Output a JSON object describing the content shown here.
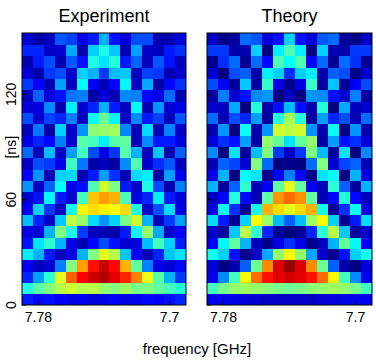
{
  "chart_data": [
    {
      "type": "heatmap",
      "title": "Experiment",
      "xlabel": "frequency [GHz]",
      "ylabel": "[ns]",
      "xlim": [
        7.79,
        7.69
      ],
      "ylim": [
        0,
        155
      ],
      "xticks": [
        7.78,
        7.7
      ],
      "yticks": [
        0,
        60,
        120
      ],
      "x": [
        7.7867,
        7.78,
        7.7733,
        7.7667,
        7.76,
        7.7533,
        7.7467,
        7.74,
        7.7333,
        7.7267,
        7.72,
        7.7133,
        7.7067,
        7.7,
        7.6933
      ],
      "y": [
        3.23,
        9.69,
        16.15,
        22.6,
        29.06,
        35.52,
        41.98,
        48.44,
        54.9,
        61.35,
        67.81,
        74.27,
        80.73,
        87.19,
        93.65,
        100.1,
        106.56,
        113.02,
        119.48,
        125.94,
        132.4,
        138.85,
        145.31,
        151.77
      ],
      "z": [
        [
          0.15,
          0.13,
          0.14,
          0.12,
          0.1,
          0.11,
          0.09,
          0.1,
          0.12,
          0.1,
          0.11,
          0.13,
          0.12,
          0.14,
          0.16
        ],
        [
          0.4,
          0.46,
          0.5,
          0.55,
          0.58,
          0.55,
          0.56,
          0.52,
          0.5,
          0.53,
          0.49,
          0.5,
          0.47,
          0.44,
          0.41
        ],
        [
          0.16,
          0.28,
          0.42,
          0.6,
          0.78,
          0.88,
          0.92,
          0.95,
          0.9,
          0.84,
          0.75,
          0.61,
          0.46,
          0.3,
          0.18
        ],
        [
          0.12,
          0.06,
          0.08,
          0.25,
          0.5,
          0.72,
          0.86,
          0.93,
          0.87,
          0.7,
          0.47,
          0.25,
          0.1,
          0.08,
          0.13
        ],
        [
          0.36,
          0.3,
          0.15,
          0.06,
          0.1,
          0.3,
          0.5,
          0.6,
          0.55,
          0.32,
          0.12,
          0.05,
          0.16,
          0.32,
          0.35
        ],
        [
          0.14,
          0.35,
          0.42,
          0.3,
          0.1,
          0.05,
          0.13,
          0.2,
          0.14,
          0.08,
          0.09,
          0.31,
          0.44,
          0.33,
          0.15
        ],
        [
          0.1,
          0.08,
          0.3,
          0.5,
          0.4,
          0.18,
          0.06,
          0.05,
          0.04,
          0.15,
          0.38,
          0.52,
          0.29,
          0.07,
          0.12
        ],
        [
          0.31,
          0.16,
          0.07,
          0.32,
          0.56,
          0.52,
          0.34,
          0.27,
          0.33,
          0.49,
          0.58,
          0.3,
          0.06,
          0.18,
          0.28
        ],
        [
          0.12,
          0.33,
          0.18,
          0.06,
          0.38,
          0.63,
          0.66,
          0.64,
          0.62,
          0.66,
          0.4,
          0.07,
          0.2,
          0.34,
          0.1
        ],
        [
          0.08,
          0.14,
          0.37,
          0.15,
          0.08,
          0.44,
          0.68,
          0.72,
          0.7,
          0.45,
          0.1,
          0.16,
          0.36,
          0.15,
          0.09
        ],
        [
          0.27,
          0.07,
          0.22,
          0.38,
          0.1,
          0.14,
          0.45,
          0.58,
          0.5,
          0.15,
          0.07,
          0.4,
          0.2,
          0.05,
          0.25
        ],
        [
          0.12,
          0.27,
          0.05,
          0.33,
          0.34,
          0.05,
          0.15,
          0.28,
          0.17,
          0.05,
          0.34,
          0.36,
          0.04,
          0.28,
          0.11
        ],
        [
          0.07,
          0.2,
          0.18,
          0.1,
          0.44,
          0.24,
          0.04,
          0.06,
          0.03,
          0.26,
          0.45,
          0.08,
          0.17,
          0.21,
          0.06
        ],
        [
          0.23,
          0.05,
          0.31,
          0.07,
          0.28,
          0.44,
          0.2,
          0.1,
          0.18,
          0.46,
          0.3,
          0.06,
          0.32,
          0.04,
          0.22
        ],
        [
          0.1,
          0.16,
          0.13,
          0.25,
          0.08,
          0.46,
          0.44,
          0.36,
          0.46,
          0.47,
          0.06,
          0.26,
          0.15,
          0.15,
          0.09
        ],
        [
          0.06,
          0.24,
          0.04,
          0.33,
          0.07,
          0.27,
          0.51,
          0.52,
          0.53,
          0.26,
          0.05,
          0.34,
          0.05,
          0.25,
          0.07
        ],
        [
          0.2,
          0.08,
          0.19,
          0.16,
          0.25,
          0.06,
          0.38,
          0.48,
          0.37,
          0.07,
          0.26,
          0.15,
          0.19,
          0.06,
          0.21
        ],
        [
          0.09,
          0.09,
          0.26,
          0.04,
          0.36,
          0.08,
          0.16,
          0.3,
          0.15,
          0.06,
          0.37,
          0.05,
          0.27,
          0.08,
          0.1
        ],
        [
          0.06,
          0.22,
          0.09,
          0.14,
          0.24,
          0.25,
          0.04,
          0.09,
          0.05,
          0.26,
          0.25,
          0.13,
          0.1,
          0.23,
          0.05
        ],
        [
          0.18,
          0.12,
          0.05,
          0.28,
          0.06,
          0.38,
          0.12,
          0.05,
          0.13,
          0.37,
          0.07,
          0.29,
          0.04,
          0.13,
          0.17
        ],
        [
          0.09,
          0.04,
          0.18,
          0.2,
          0.07,
          0.33,
          0.3,
          0.18,
          0.31,
          0.32,
          0.06,
          0.19,
          0.18,
          0.05,
          0.08
        ],
        [
          0.05,
          0.15,
          0.2,
          0.05,
          0.21,
          0.14,
          0.4,
          0.35,
          0.41,
          0.15,
          0.22,
          0.06,
          0.21,
          0.14,
          0.06
        ],
        [
          0.16,
          0.16,
          0.07,
          0.08,
          0.29,
          0.04,
          0.33,
          0.4,
          0.32,
          0.05,
          0.28,
          0.07,
          0.06,
          0.15,
          0.17
        ],
        [
          0.08,
          0.04,
          0.06,
          0.21,
          0.19,
          0.1,
          0.15,
          0.3,
          0.14,
          0.09,
          0.2,
          0.2,
          0.05,
          0.05,
          0.09
        ]
      ]
    },
    {
      "type": "heatmap",
      "title": "Theory",
      "tick_labels": "x",
      "xlim": [
        7.79,
        7.69
      ],
      "ylim": [
        0,
        155
      ],
      "xticks": [
        7.78,
        7.7
      ],
      "yticks": [
        0,
        60,
        120
      ],
      "x": [
        7.7867,
        7.78,
        7.7733,
        7.7667,
        7.76,
        7.7533,
        7.7467,
        7.74,
        7.7333,
        7.7267,
        7.72,
        7.7133,
        7.7067,
        7.7,
        7.6933
      ],
      "y": [
        3.23,
        9.69,
        16.15,
        22.6,
        29.06,
        35.52,
        41.98,
        48.44,
        54.9,
        61.35,
        67.81,
        74.27,
        80.73,
        87.19,
        93.65,
        100.1,
        106.56,
        113.02,
        119.48,
        125.94,
        132.4,
        138.85,
        145.31,
        151.77
      ],
      "z": [
        [
          0.11,
          0.11,
          0.1,
          0.09,
          0.08,
          0.07,
          0.07,
          0.07,
          0.07,
          0.07,
          0.08,
          0.09,
          0.1,
          0.11,
          0.11
        ],
        [
          0.44,
          0.49,
          0.52,
          0.53,
          0.52,
          0.51,
          0.49,
          0.48,
          0.49,
          0.51,
          0.52,
          0.53,
          0.52,
          0.49,
          0.44
        ],
        [
          0.11,
          0.26,
          0.44,
          0.63,
          0.77,
          0.86,
          0.9,
          0.92,
          0.9,
          0.86,
          0.77,
          0.63,
          0.44,
          0.26,
          0.11
        ],
        [
          0.09,
          0,
          0.04,
          0.22,
          0.48,
          0.74,
          0.91,
          0.98,
          0.91,
          0.74,
          0.48,
          0.22,
          0.04,
          0,
          0.09
        ],
        [
          0.39,
          0.33,
          0.14,
          0.01,
          0.07,
          0.29,
          0.52,
          0.62,
          0.52,
          0.29,
          0.07,
          0.01,
          0.14,
          0.33,
          0.39
        ],
        [
          0.11,
          0.37,
          0.47,
          0.3,
          0.06,
          0.01,
          0.1,
          0.17,
          0.1,
          0.01,
          0.06,
          0.3,
          0.47,
          0.37,
          0.11
        ],
        [
          0.07,
          0.03,
          0.32,
          0.56,
          0.42,
          0.16,
          0.02,
          0,
          0.02,
          0.16,
          0.42,
          0.56,
          0.32,
          0.03,
          0.07
        ],
        [
          0.34,
          0.15,
          0.01,
          0.33,
          0.62,
          0.53,
          0.31,
          0.22,
          0.31,
          0.53,
          0.62,
          0.33,
          0.01,
          0.15,
          0.34
        ],
        [
          0.1,
          0.38,
          0.17,
          0.02,
          0.39,
          0.7,
          0.66,
          0.6,
          0.66,
          0.7,
          0.39,
          0.02,
          0.17,
          0.38,
          0.1
        ],
        [
          0.06,
          0.13,
          0.41,
          0.13,
          0.05,
          0.47,
          0.73,
          0.77,
          0.73,
          0.47,
          0.05,
          0.13,
          0.41,
          0.13,
          0.06
        ],
        [
          0.3,
          0.03,
          0.22,
          0.42,
          0.05,
          0.12,
          0.47,
          0.6,
          0.47,
          0.12,
          0.05,
          0.42,
          0.22,
          0.03,
          0.3
        ],
        [
          0.1,
          0.3,
          0,
          0.38,
          0.35,
          0.01,
          0.12,
          0.25,
          0.12,
          0.01,
          0.35,
          0.38,
          0,
          0.3,
          0.1
        ],
        [
          0.05,
          0.22,
          0.19,
          0.08,
          0.5,
          0.23,
          0,
          0.01,
          0,
          0.23,
          0.5,
          0.08,
          0.19,
          0.22,
          0.05
        ],
        [
          0.26,
          0,
          0.35,
          0.03,
          0.31,
          0.5,
          0.18,
          0.07,
          0.18,
          0.5,
          0.31,
          0.03,
          0.35,
          0,
          0.26
        ],
        [
          0.09,
          0.17,
          0.14,
          0.28,
          0.04,
          0.52,
          0.47,
          0.35,
          0.47,
          0.52,
          0.04,
          0.28,
          0.14,
          0.17,
          0.09
        ],
        [
          0.04,
          0.27,
          0,
          0.38,
          0.04,
          0.27,
          0.58,
          0.56,
          0.58,
          0.27,
          0.04,
          0.38,
          0,
          0.27,
          0.04
        ],
        [
          0.23,
          0.05,
          0.2,
          0.16,
          0.28,
          0.03,
          0.41,
          0.54,
          0.41,
          0.03,
          0.28,
          0.16,
          0.2,
          0.05,
          0.23
        ],
        [
          0.08,
          0.06,
          0.29,
          0,
          0.41,
          0.04,
          0.14,
          0.31,
          0.14,
          0.04,
          0.41,
          0,
          0.29,
          0.06,
          0.08
        ],
        [
          0.03,
          0.25,
          0.08,
          0.14,
          0.26,
          0.27,
          0,
          0.06,
          0,
          0.27,
          0.26,
          0.14,
          0.08,
          0.25,
          0.03
        ],
        [
          0.2,
          0.12,
          0.02,
          0.32,
          0.03,
          0.43,
          0.1,
          0.01,
          0.1,
          0.43,
          0.03,
          0.32,
          0.02,
          0.12,
          0.2
        ],
        [
          0.08,
          0,
          0.2,
          0.22,
          0.04,
          0.36,
          0.33,
          0.17,
          0.33,
          0.36,
          0.04,
          0.22,
          0.2,
          0,
          0.08
        ],
        [
          0.02,
          0.17,
          0.23,
          0.02,
          0.23,
          0.13,
          0.45,
          0.38,
          0.45,
          0.13,
          0.23,
          0.02,
          0.23,
          0.17,
          0.02
        ],
        [
          0.18,
          0.18,
          0.04,
          0.05,
          0.33,
          0,
          0.36,
          0.45,
          0.36,
          0,
          0.33,
          0.05,
          0.04,
          0.18,
          0.18
        ],
        [
          0.07,
          0.01,
          0.03,
          0.23,
          0.21,
          0.09,
          0.14,
          0.33,
          0.14,
          0.09,
          0.21,
          0.23,
          0.03,
          0.01,
          0.07
        ]
      ]
    }
  ]
}
